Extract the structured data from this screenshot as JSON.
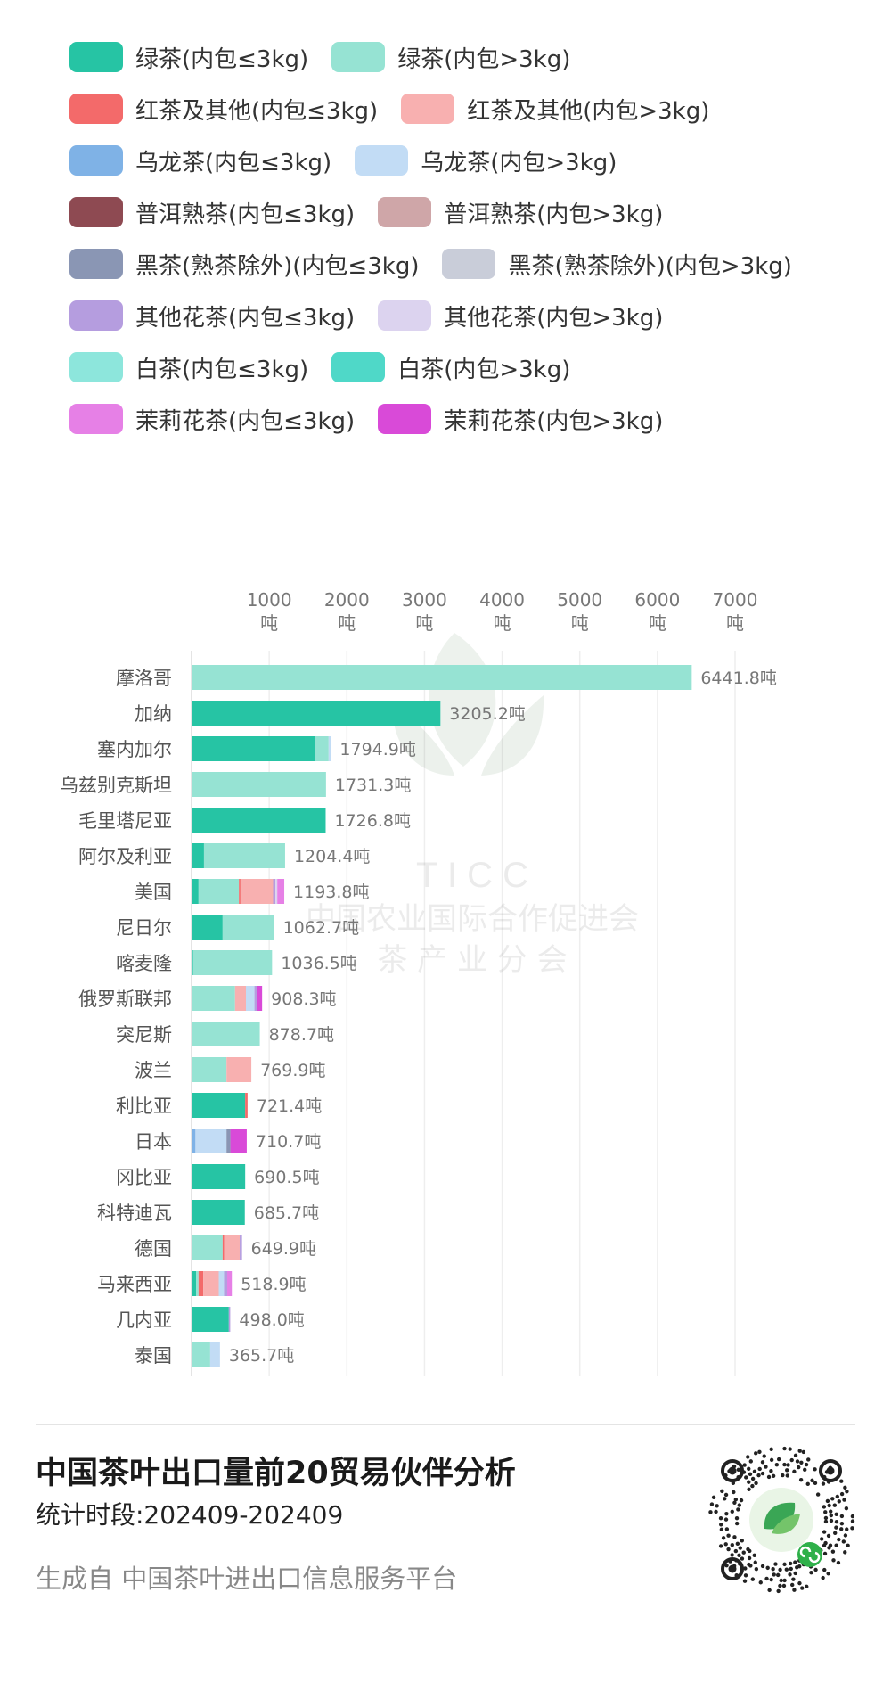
{
  "legend": [
    {
      "label": "绿茶(内包≤3kg)",
      "color": "#26c4a4"
    },
    {
      "label": "绿茶(内包>3kg)",
      "color": "#96e3d3"
    },
    {
      "label": "红茶及其他(内包≤3kg)",
      "color": "#f36a6a"
    },
    {
      "label": "红茶及其他(内包>3kg)",
      "color": "#f8b0b0"
    },
    {
      "label": "乌龙茶(内包≤3kg)",
      "color": "#7fb2e6"
    },
    {
      "label": "乌龙茶(内包>3kg)",
      "color": "#c2dcf5"
    },
    {
      "label": "普洱熟茶(内包≤3kg)",
      "color": "#8e4a52"
    },
    {
      "label": "普洱熟茶(内包>3kg)",
      "color": "#cfa6a8"
    },
    {
      "label": "黑茶(熟茶除外)(内包≤3kg)",
      "color": "#8a96b4"
    },
    {
      "label": "黑茶(熟茶除外)(内包>3kg)",
      "color": "#c9cdd9"
    },
    {
      "label": "其他花茶(内包≤3kg)",
      "color": "#b59ddf"
    },
    {
      "label": "其他花茶(内包>3kg)",
      "color": "#dcd3ef"
    },
    {
      "label": "白茶(内包≤3kg)",
      "color": "#8de6dc"
    },
    {
      "label": "白茶(内包>3kg)",
      "color": "#4fd8c8"
    },
    {
      "label": "茉莉花茶(内包≤3kg)",
      "color": "#e680e6"
    },
    {
      "label": "茉莉花茶(内包>3kg)",
      "color": "#d94ad8"
    }
  ],
  "chart_data": {
    "type": "bar",
    "orientation": "horizontal",
    "stacked": true,
    "x_axis_position": "top",
    "grid": true,
    "legend_position": "top",
    "xlim": [
      0,
      7000
    ],
    "xticks": [
      {
        "value": 1000,
        "num": "1000",
        "unit": "吨"
      },
      {
        "value": 2000,
        "num": "2000",
        "unit": "吨"
      },
      {
        "value": 3000,
        "num": "3000",
        "unit": "吨"
      },
      {
        "value": 4000,
        "num": "4000",
        "unit": "吨"
      },
      {
        "value": 5000,
        "num": "5000",
        "unit": "吨"
      },
      {
        "value": 6000,
        "num": "6000",
        "unit": "吨"
      },
      {
        "value": 7000,
        "num": "7000",
        "unit": "吨"
      }
    ],
    "categories": [
      "摩洛哥",
      "加纳",
      "塞内加尔",
      "乌兹别克斯坦",
      "毛里塔尼亚",
      "阿尔及利亚",
      "美国",
      "尼日尔",
      "喀麦隆",
      "俄罗斯联邦",
      "突尼斯",
      "波兰",
      "利比亚",
      "日本",
      "冈比亚",
      "科特迪瓦",
      "德国",
      "马来西亚",
      "几内亚",
      "泰国"
    ],
    "total_labels": [
      "6441.8吨",
      "3205.2吨",
      "1794.9吨",
      "1731.3吨",
      "1726.8吨",
      "1204.4吨",
      "1193.8吨",
      "1062.7吨",
      "1036.5吨",
      "908.3吨",
      "878.7吨",
      "769.9吨",
      "721.4吨",
      "710.7吨",
      "690.5吨",
      "685.7吨",
      "649.9吨",
      "518.9吨",
      "498.0吨",
      "365.7吨"
    ],
    "totals": [
      6441.8,
      3205.2,
      1794.9,
      1731.3,
      1726.8,
      1204.4,
      1193.8,
      1062.7,
      1036.5,
      908.3,
      878.7,
      769.9,
      721.4,
      710.7,
      690.5,
      685.7,
      649.9,
      518.9,
      498.0,
      365.7
    ],
    "series": [
      {
        "name": "绿茶(内包≤3kg)",
        "values": [
          0,
          3205.2,
          1590,
          0,
          1726.8,
          160,
          90,
          400,
          20,
          0,
          0,
          0,
          690,
          0,
          690.5,
          685.7,
          0,
          60,
          480,
          0
        ]
      },
      {
        "name": "绿茶(内包>3kg)",
        "values": [
          6441.8,
          0,
          175,
          1731.3,
          0,
          1044.4,
          520,
          662.7,
          1016.5,
          560,
          878.7,
          450,
          0,
          0,
          0,
          0,
          400,
          30,
          0,
          240
        ]
      },
      {
        "name": "红茶及其他(内包≤3kg)",
        "values": [
          0,
          0,
          0,
          0,
          0,
          0,
          20,
          0,
          0,
          0,
          0,
          0,
          31.4,
          0,
          0,
          0,
          20,
          60,
          0,
          0
        ]
      },
      {
        "name": "红茶及其他(内包>3kg)",
        "values": [
          0,
          0,
          0,
          0,
          0,
          0,
          420,
          0,
          0,
          140,
          0,
          319.9,
          0,
          0,
          0,
          0,
          200,
          200,
          0,
          0
        ]
      },
      {
        "name": "乌龙茶(内包≤3kg)",
        "values": [
          0,
          0,
          0,
          0,
          0,
          0,
          0,
          0,
          0,
          0,
          0,
          0,
          0,
          50,
          0,
          0,
          0,
          0,
          0,
          0
        ]
      },
      {
        "name": "乌龙茶(内包>3kg)",
        "values": [
          0,
          0,
          29.9,
          0,
          0,
          0,
          0,
          0,
          0,
          110,
          0,
          0,
          0,
          400,
          0,
          0,
          0,
          68.9,
          0,
          125.7
        ]
      },
      {
        "name": "普洱熟茶(内包≤3kg)",
        "values": [
          0,
          0,
          0,
          0,
          0,
          0,
          0,
          0,
          0,
          0,
          0,
          0,
          0,
          0,
          0,
          0,
          0,
          0,
          0,
          0
        ]
      },
      {
        "name": "普洱熟茶(内包>3kg)",
        "values": [
          0,
          0,
          0,
          0,
          0,
          0,
          0,
          0,
          0,
          0,
          0,
          0,
          0,
          0,
          0,
          0,
          0,
          0,
          0,
          0
        ]
      },
      {
        "name": "黑茶(熟茶除外)(内包≤3kg)",
        "values": [
          0,
          0,
          0,
          0,
          0,
          0,
          0,
          0,
          0,
          0,
          0,
          0,
          0,
          50,
          0,
          0,
          0,
          0,
          0,
          0
        ]
      },
      {
        "name": "黑茶(熟茶除外)(内包>3kg)",
        "values": [
          0,
          0,
          0,
          0,
          0,
          0,
          0,
          0,
          0,
          0,
          0,
          0,
          0,
          0,
          0,
          0,
          0,
          0,
          0,
          0
        ]
      },
      {
        "name": "其他花茶(内包≤3kg)",
        "values": [
          0,
          0,
          0,
          0,
          0,
          0,
          30,
          0,
          0,
          30,
          0,
          0,
          0,
          0,
          0,
          0,
          29.9,
          40,
          18,
          0
        ]
      },
      {
        "name": "其他花茶(内包>3kg)",
        "values": [
          0,
          0,
          0,
          0,
          0,
          0,
          23.8,
          0,
          0,
          0,
          0,
          0,
          0,
          0,
          0,
          0,
          0,
          0,
          0,
          0
        ]
      },
      {
        "name": "白茶(内包≤3kg)",
        "values": [
          0,
          0,
          0,
          0,
          0,
          0,
          0,
          0,
          0,
          0,
          0,
          0,
          0,
          0,
          0,
          0,
          0,
          0,
          0,
          0
        ]
      },
      {
        "name": "白茶(内包>3kg)",
        "values": [
          0,
          0,
          0,
          0,
          0,
          0,
          0,
          0,
          0,
          0,
          0,
          0,
          0,
          0,
          0,
          0,
          0,
          0,
          0,
          0
        ]
      },
      {
        "name": "茉莉花茶(内包≤3kg)",
        "values": [
          0,
          0,
          0,
          0,
          0,
          0,
          90,
          0,
          0,
          0,
          0,
          0,
          0,
          0,
          0,
          0,
          0,
          60,
          0,
          0
        ]
      },
      {
        "name": "茉莉花茶(内包>3kg)",
        "values": [
          0,
          0,
          0,
          0,
          0,
          0,
          0,
          0,
          0,
          68.3,
          0,
          0,
          0,
          210.7,
          0,
          0,
          0,
          0,
          0,
          0
        ]
      }
    ]
  },
  "watermark": {
    "letters": "T I C C",
    "line1": "中国农业国际合作促进会",
    "line2": "茶 产 业 分 会"
  },
  "footer": {
    "title": "中国茶叶出口量前20贸易伙伴分析",
    "period": "统计时段:202409-202409",
    "source": "生成自 中国茶叶进出口信息服务平台"
  },
  "qr_icon": "mini-program-qr-code"
}
